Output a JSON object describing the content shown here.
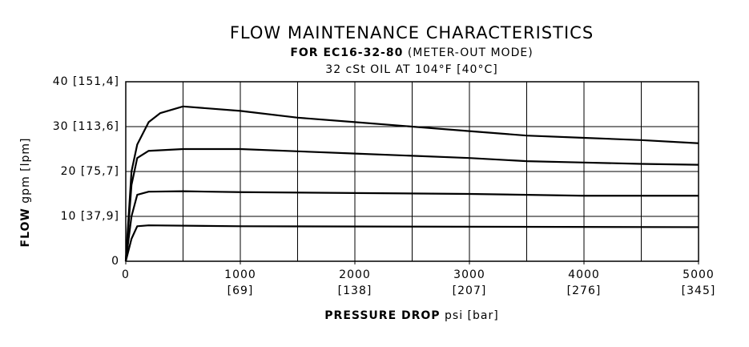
{
  "chart_data": {
    "type": "line",
    "title": "FLOW MAINTENANCE CHARACTERISTICS",
    "subtitle_bold": "FOR EC16-32-80",
    "subtitle": "(METER-OUT MODE)",
    "subtitle2": "32 cSt OIL AT 104°F [40°C]",
    "y_label_bold": "FLOW",
    "y_label": "gpm [lpm]",
    "x_label_bold": "PRESSURE DROP",
    "x_label": "psi [bar]",
    "xlim": [
      0,
      5000
    ],
    "ylim": [
      0,
      40
    ],
    "xticks": [
      0,
      {
        "value": 1000,
        "label": "1000\n[69]"
      },
      {
        "value": 2000,
        "label": "2000\n[138]"
      },
      {
        "value": 3000,
        "label": "3000\n[207]"
      },
      {
        "value": 4000,
        "label": "4000\n[276]"
      },
      {
        "value": 5000,
        "label": "5000\n[345]"
      }
    ],
    "yticks": [
      0,
      {
        "value": 10,
        "label": "10 [37,9]"
      },
      {
        "value": 20,
        "label": "20 [75,7]"
      },
      {
        "value": 30,
        "label": "30 [113,6]"
      },
      {
        "value": 40,
        "label": "40 [151,4]"
      }
    ],
    "xgrid": [
      500,
      1000,
      1500,
      2000,
      2500,
      3000,
      3500,
      4000,
      4500,
      5000
    ],
    "grid": true,
    "series": [
      {
        "color": "#000000",
        "x": [
          0,
          50,
          100,
          200,
          300,
          500,
          1000,
          1500,
          2000,
          2500,
          3000,
          3500,
          4000,
          4500,
          5000
        ],
        "values": [
          0,
          20,
          26,
          31,
          33,
          34.5,
          33.5,
          32,
          31,
          30,
          29,
          28,
          27.5,
          27,
          26.3
        ]
      },
      {
        "color": "#000000",
        "x": [
          0,
          50,
          100,
          200,
          500,
          1000,
          1500,
          2000,
          2500,
          3000,
          3500,
          4000,
          4500,
          5000
        ],
        "values": [
          0,
          17,
          23,
          24.6,
          25,
          25,
          24.5,
          24,
          23.5,
          23,
          22.3,
          22,
          21.7,
          21.5
        ]
      },
      {
        "color": "#000000",
        "x": [
          0,
          50,
          100,
          200,
          500,
          1000,
          2000,
          3000,
          4000,
          5000
        ],
        "values": [
          0,
          10,
          14.8,
          15.5,
          15.6,
          15.4,
          15.2,
          15,
          14.6,
          14.6
        ]
      },
      {
        "color": "#000000",
        "x": [
          0,
          50,
          100,
          200,
          1000,
          5000
        ],
        "values": [
          0,
          5,
          7.8,
          8,
          7.8,
          7.6
        ]
      }
    ]
  }
}
